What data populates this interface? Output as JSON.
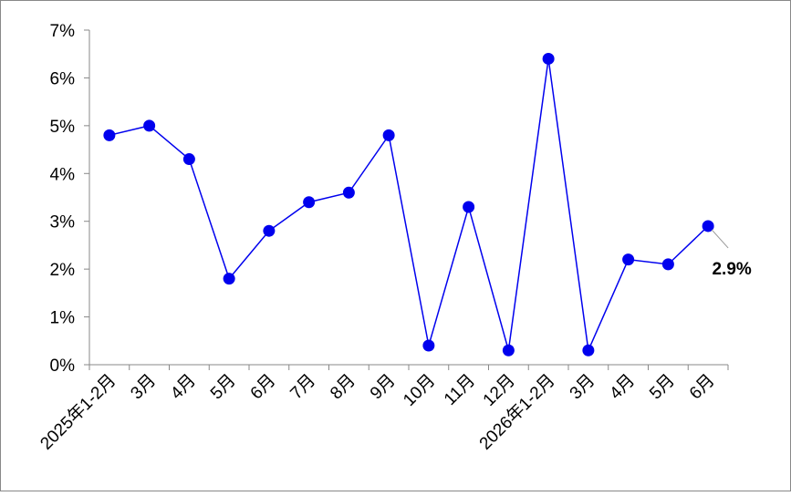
{
  "chart_data": {
    "type": "line",
    "categories": [
      "2025年1-2月",
      "3月",
      "4月",
      "5月",
      "6月",
      "7月",
      "8月",
      "9月",
      "10月",
      "11月",
      "12月",
      "2026年1-2月",
      "3月",
      "4月",
      "5月",
      "6月"
    ],
    "series": [
      {
        "color": "#0000ee",
        "values": [
          4.8,
          5.0,
          4.3,
          1.8,
          2.8,
          3.4,
          3.6,
          4.8,
          0.4,
          3.3,
          0.3,
          6.4,
          0.3,
          2.2,
          2.1,
          2.9
        ],
        "value_labels": [
          null,
          null,
          null,
          null,
          null,
          null,
          null,
          null,
          null,
          null,
          null,
          null,
          null,
          null,
          null,
          "2.9%"
        ]
      }
    ],
    "ylim": [
      0,
      7
    ],
    "yticks": [
      {
        "value": 0,
        "label": "0%"
      },
      {
        "value": 1,
        "label": "1%"
      },
      {
        "value": 2,
        "label": "2%"
      },
      {
        "value": 3,
        "label": "3%"
      },
      {
        "value": 4,
        "label": "4%"
      },
      {
        "value": 5,
        "label": "5%"
      },
      {
        "value": 6,
        "label": "6%"
      },
      {
        "value": 7,
        "label": "7%"
      }
    ],
    "grid": false
  }
}
